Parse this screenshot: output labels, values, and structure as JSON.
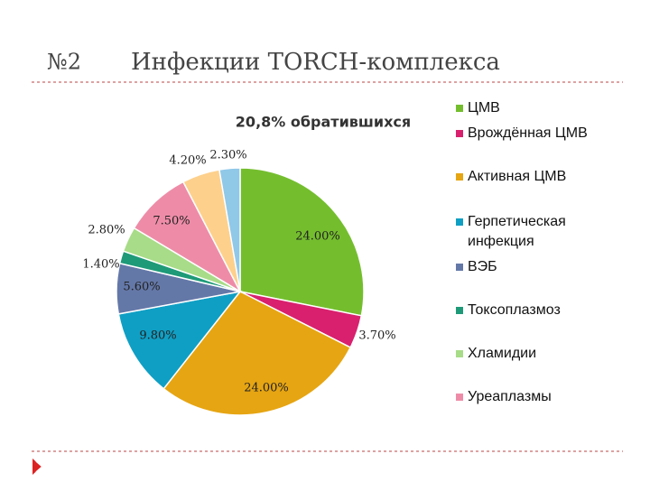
{
  "chart_data": {
    "type": "pie",
    "slide_number": "№2",
    "title": "Инфекции TORCH-комплекса",
    "subtitle": "20,8% обратившихся",
    "categories": [
      "ЦМВ",
      "Врождённая ЦМВ",
      "Активная ЦМВ",
      "Герпетическая инфекция",
      "ВЭБ",
      "Токсоплазмоз",
      "Хламидии",
      "Уреаплазмы",
      null,
      null
    ],
    "values": [
      24,
      3.7,
      24,
      9.8,
      5.6,
      1.4,
      2.8,
      7.5,
      4.2,
      2.3
    ],
    "value_labels": [
      "24.00%",
      "3.70%",
      "24.00%",
      "9.80%",
      "5.60%",
      "1.40%",
      "2.80%",
      "7.50%",
      "4.20%",
      "2.30%"
    ],
    "colors": [
      "#74be2e",
      "#d9206e",
      "#e6a512",
      "#109fc4",
      "#6478a8",
      "#1e9a78",
      "#a8dc88",
      "#ee8ca8",
      "#fdd08c",
      "#90c8e8"
    ]
  }
}
